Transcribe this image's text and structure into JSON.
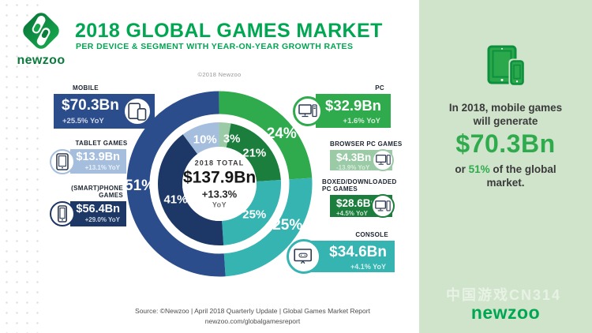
{
  "header": {
    "brand": "newzoo",
    "title": "2018 GLOBAL GAMES MARKET",
    "subtitle": "PER DEVICE & SEGMENT WITH YEAR-ON-YEAR GROWTH RATES",
    "copyright": "©2018 Newzoo"
  },
  "chart_data": {
    "type": "donut",
    "title": "2018 Global Games Market per Device & Segment",
    "center": {
      "label": "2018 TOTAL",
      "value": "$137.9Bn",
      "growth": "+13.3%",
      "growth_unit": "YoY"
    },
    "outer_ring": [
      {
        "label": "PC",
        "pct": 24,
        "color": "#2fab4d"
      },
      {
        "label": "Console",
        "pct": 25,
        "color": "#35b4b2"
      },
      {
        "label": "Mobile",
        "pct": 51,
        "color": "#2b4d8c"
      }
    ],
    "inner_ring": [
      {
        "label": "Browser PC Games",
        "pct": 3,
        "color": "#9bcba6"
      },
      {
        "label": "Boxed/Downloaded PC Games",
        "pct": 21,
        "color": "#1c7e3c"
      },
      {
        "label": "Console",
        "pct": 25,
        "color": "#35b4b2"
      },
      {
        "label": "(Smart)phone Games",
        "pct": 41,
        "color": "#1d3866"
      },
      {
        "label": "Tablet Games",
        "pct": 10,
        "color": "#a6bedd"
      }
    ]
  },
  "devices": {
    "mobile": {
      "label": "MOBILE",
      "value": "$70.3Bn",
      "yoy": "+25.5% YoY"
    },
    "tablet": {
      "label": "TABLET GAMES",
      "value": "$13.9Bn",
      "yoy": "+13.1% YoY"
    },
    "smartphone": {
      "label": "(SMART)PHONE GAMES",
      "value": "$56.4Bn",
      "yoy": "+29.0% YoY"
    },
    "pc": {
      "label": "PC",
      "value": "$32.9Bn",
      "yoy": "+1.6% YoY"
    },
    "browser": {
      "label": "BROWSER PC GAMES",
      "value": "$4.3Bn",
      "yoy": "-13.9% YoY"
    },
    "boxed": {
      "label": "BOXED/DOWNLOADED PC GAMES",
      "value": "$28.6Bn",
      "yoy": "+4.5% YoY"
    },
    "console": {
      "label": "CONSOLE",
      "value": "$34.6Bn",
      "yoy": "+4.1% YoY"
    }
  },
  "panel": {
    "line1": "In 2018, mobile games will generate",
    "highlight_value": "$70.3Bn",
    "line2_prefix": "or ",
    "line2_pct": "51%",
    "line2_suffix": " of the global market.",
    "brand": "newzoo",
    "watermark": "中国游戏CN314"
  },
  "footer": {
    "source_line1": "Source: ©Newzoo | April 2018 Quarterly Update | Global Games Market Report",
    "source_line2": "newzoo.com/globalgamesreport"
  },
  "colors": {
    "brand_green": "#00a651",
    "mobile_blue": "#2b4d8c",
    "smartphone_navy": "#1d3866",
    "tablet_blue": "#a6bedd",
    "pc_green": "#2fab4d",
    "boxed_green": "#1c7e3c",
    "browser_green": "#9bcba6",
    "console_teal": "#35b4b2",
    "panel_bg": "#cfe4cb"
  }
}
